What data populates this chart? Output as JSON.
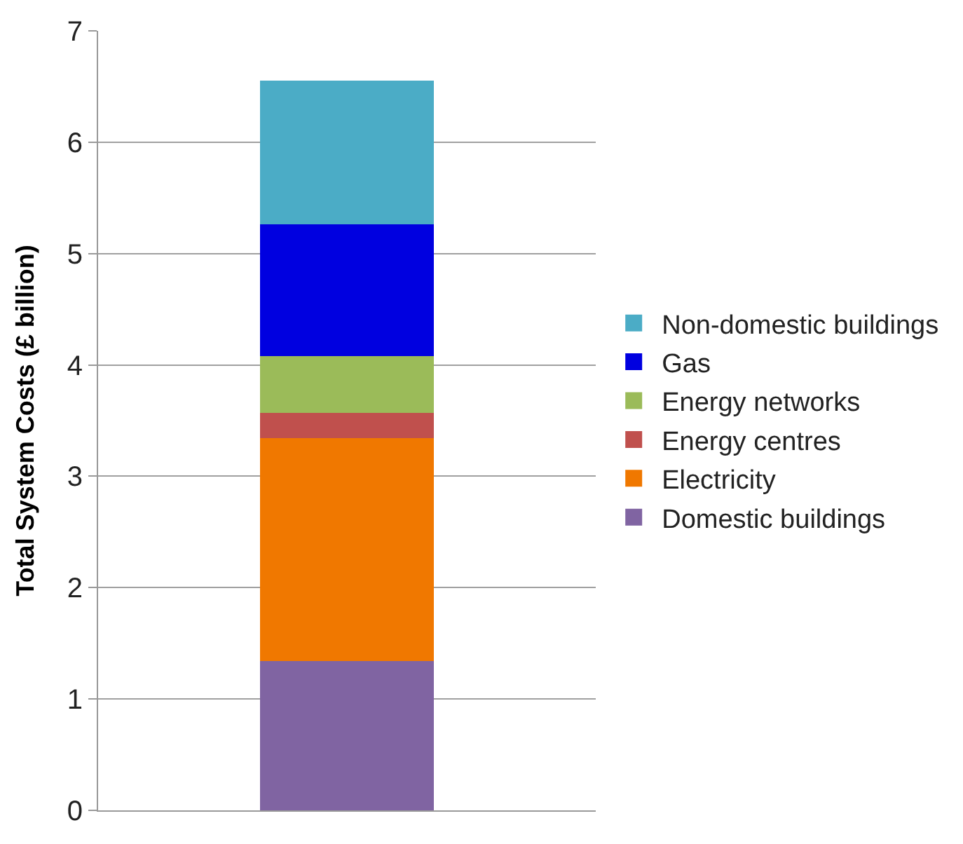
{
  "chart_data": {
    "type": "bar",
    "stacked": true,
    "ylabel": "Total System Costs (£ billion)",
    "categories": [
      null
    ],
    "series": [
      {
        "name": "Domestic buildings",
        "color": "#8064a2",
        "values": [
          1.34
        ]
      },
      {
        "name": "Electricity",
        "color": "#f07800",
        "values": [
          2.0
        ]
      },
      {
        "name": "Energy centres",
        "color": "#c0504d",
        "values": [
          0.23
        ]
      },
      {
        "name": "Energy networks",
        "color": "#9bbb59",
        "values": [
          0.51
        ]
      },
      {
        "name": "Gas",
        "color": "#0000e0",
        "values": [
          1.18
        ]
      },
      {
        "name": "Non-domestic buildings",
        "color": "#4bacc6",
        "values": [
          1.29
        ]
      }
    ],
    "ylim": [
      0,
      7
    ],
    "yticks": [
      0,
      1,
      2,
      3,
      4,
      5,
      6,
      7
    ],
    "grid": "y",
    "legend": "right"
  }
}
